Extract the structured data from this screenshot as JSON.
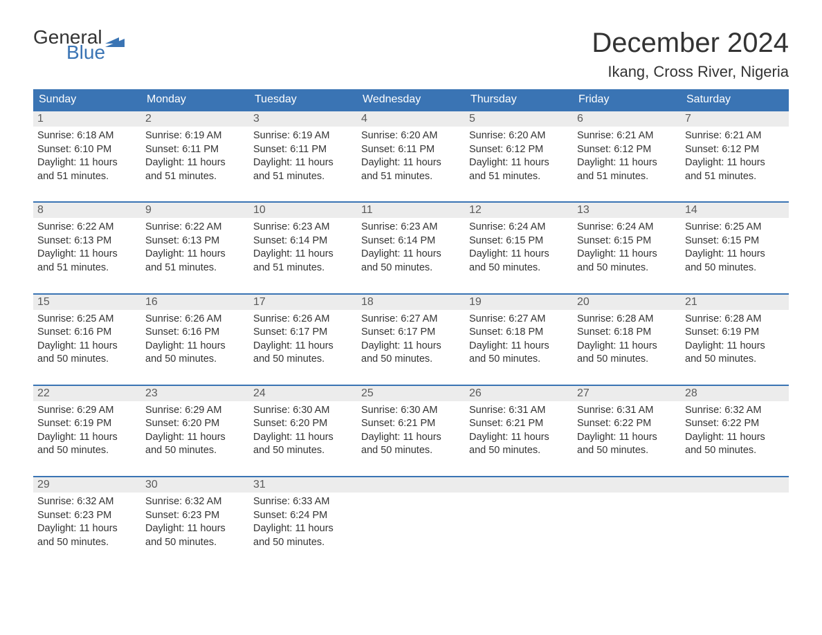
{
  "logo": {
    "word1": "General",
    "word2": "Blue",
    "text_color_word1": "#333333",
    "text_color_word2": "#3a74b4",
    "flag_color": "#3a74b4"
  },
  "title": {
    "month": "December 2024",
    "location": "Ikang, Cross River, Nigeria"
  },
  "colors": {
    "header_bg": "#3a74b4",
    "header_text": "#ffffff",
    "daynum_bg": "#ececec",
    "daynum_text": "#5a5a5a",
    "body_text": "#333333",
    "week_border": "#3a74b4",
    "page_bg": "#ffffff"
  },
  "typography": {
    "month_title_fontsize": 40,
    "location_fontsize": 22,
    "dow_fontsize": 16,
    "daynum_fontsize": 16,
    "body_fontsize": 14.5
  },
  "days_of_week": [
    "Sunday",
    "Monday",
    "Tuesday",
    "Wednesday",
    "Thursday",
    "Friday",
    "Saturday"
  ],
  "weeks": [
    [
      {
        "day": "1",
        "sunrise": "Sunrise: 6:18 AM",
        "sunset": "Sunset: 6:10 PM",
        "daylight1": "Daylight: 11 hours",
        "daylight2": "and 51 minutes."
      },
      {
        "day": "2",
        "sunrise": "Sunrise: 6:19 AM",
        "sunset": "Sunset: 6:11 PM",
        "daylight1": "Daylight: 11 hours",
        "daylight2": "and 51 minutes."
      },
      {
        "day": "3",
        "sunrise": "Sunrise: 6:19 AM",
        "sunset": "Sunset: 6:11 PM",
        "daylight1": "Daylight: 11 hours",
        "daylight2": "and 51 minutes."
      },
      {
        "day": "4",
        "sunrise": "Sunrise: 6:20 AM",
        "sunset": "Sunset: 6:11 PM",
        "daylight1": "Daylight: 11 hours",
        "daylight2": "and 51 minutes."
      },
      {
        "day": "5",
        "sunrise": "Sunrise: 6:20 AM",
        "sunset": "Sunset: 6:12 PM",
        "daylight1": "Daylight: 11 hours",
        "daylight2": "and 51 minutes."
      },
      {
        "day": "6",
        "sunrise": "Sunrise: 6:21 AM",
        "sunset": "Sunset: 6:12 PM",
        "daylight1": "Daylight: 11 hours",
        "daylight2": "and 51 minutes."
      },
      {
        "day": "7",
        "sunrise": "Sunrise: 6:21 AM",
        "sunset": "Sunset: 6:12 PM",
        "daylight1": "Daylight: 11 hours",
        "daylight2": "and 51 minutes."
      }
    ],
    [
      {
        "day": "8",
        "sunrise": "Sunrise: 6:22 AM",
        "sunset": "Sunset: 6:13 PM",
        "daylight1": "Daylight: 11 hours",
        "daylight2": "and 51 minutes."
      },
      {
        "day": "9",
        "sunrise": "Sunrise: 6:22 AM",
        "sunset": "Sunset: 6:13 PM",
        "daylight1": "Daylight: 11 hours",
        "daylight2": "and 51 minutes."
      },
      {
        "day": "10",
        "sunrise": "Sunrise: 6:23 AM",
        "sunset": "Sunset: 6:14 PM",
        "daylight1": "Daylight: 11 hours",
        "daylight2": "and 51 minutes."
      },
      {
        "day": "11",
        "sunrise": "Sunrise: 6:23 AM",
        "sunset": "Sunset: 6:14 PM",
        "daylight1": "Daylight: 11 hours",
        "daylight2": "and 50 minutes."
      },
      {
        "day": "12",
        "sunrise": "Sunrise: 6:24 AM",
        "sunset": "Sunset: 6:15 PM",
        "daylight1": "Daylight: 11 hours",
        "daylight2": "and 50 minutes."
      },
      {
        "day": "13",
        "sunrise": "Sunrise: 6:24 AM",
        "sunset": "Sunset: 6:15 PM",
        "daylight1": "Daylight: 11 hours",
        "daylight2": "and 50 minutes."
      },
      {
        "day": "14",
        "sunrise": "Sunrise: 6:25 AM",
        "sunset": "Sunset: 6:15 PM",
        "daylight1": "Daylight: 11 hours",
        "daylight2": "and 50 minutes."
      }
    ],
    [
      {
        "day": "15",
        "sunrise": "Sunrise: 6:25 AM",
        "sunset": "Sunset: 6:16 PM",
        "daylight1": "Daylight: 11 hours",
        "daylight2": "and 50 minutes."
      },
      {
        "day": "16",
        "sunrise": "Sunrise: 6:26 AM",
        "sunset": "Sunset: 6:16 PM",
        "daylight1": "Daylight: 11 hours",
        "daylight2": "and 50 minutes."
      },
      {
        "day": "17",
        "sunrise": "Sunrise: 6:26 AM",
        "sunset": "Sunset: 6:17 PM",
        "daylight1": "Daylight: 11 hours",
        "daylight2": "and 50 minutes."
      },
      {
        "day": "18",
        "sunrise": "Sunrise: 6:27 AM",
        "sunset": "Sunset: 6:17 PM",
        "daylight1": "Daylight: 11 hours",
        "daylight2": "and 50 minutes."
      },
      {
        "day": "19",
        "sunrise": "Sunrise: 6:27 AM",
        "sunset": "Sunset: 6:18 PM",
        "daylight1": "Daylight: 11 hours",
        "daylight2": "and 50 minutes."
      },
      {
        "day": "20",
        "sunrise": "Sunrise: 6:28 AM",
        "sunset": "Sunset: 6:18 PM",
        "daylight1": "Daylight: 11 hours",
        "daylight2": "and 50 minutes."
      },
      {
        "day": "21",
        "sunrise": "Sunrise: 6:28 AM",
        "sunset": "Sunset: 6:19 PM",
        "daylight1": "Daylight: 11 hours",
        "daylight2": "and 50 minutes."
      }
    ],
    [
      {
        "day": "22",
        "sunrise": "Sunrise: 6:29 AM",
        "sunset": "Sunset: 6:19 PM",
        "daylight1": "Daylight: 11 hours",
        "daylight2": "and 50 minutes."
      },
      {
        "day": "23",
        "sunrise": "Sunrise: 6:29 AM",
        "sunset": "Sunset: 6:20 PM",
        "daylight1": "Daylight: 11 hours",
        "daylight2": "and 50 minutes."
      },
      {
        "day": "24",
        "sunrise": "Sunrise: 6:30 AM",
        "sunset": "Sunset: 6:20 PM",
        "daylight1": "Daylight: 11 hours",
        "daylight2": "and 50 minutes."
      },
      {
        "day": "25",
        "sunrise": "Sunrise: 6:30 AM",
        "sunset": "Sunset: 6:21 PM",
        "daylight1": "Daylight: 11 hours",
        "daylight2": "and 50 minutes."
      },
      {
        "day": "26",
        "sunrise": "Sunrise: 6:31 AM",
        "sunset": "Sunset: 6:21 PM",
        "daylight1": "Daylight: 11 hours",
        "daylight2": "and 50 minutes."
      },
      {
        "day": "27",
        "sunrise": "Sunrise: 6:31 AM",
        "sunset": "Sunset: 6:22 PM",
        "daylight1": "Daylight: 11 hours",
        "daylight2": "and 50 minutes."
      },
      {
        "day": "28",
        "sunrise": "Sunrise: 6:32 AM",
        "sunset": "Sunset: 6:22 PM",
        "daylight1": "Daylight: 11 hours",
        "daylight2": "and 50 minutes."
      }
    ],
    [
      {
        "day": "29",
        "sunrise": "Sunrise: 6:32 AM",
        "sunset": "Sunset: 6:23 PM",
        "daylight1": "Daylight: 11 hours",
        "daylight2": "and 50 minutes."
      },
      {
        "day": "30",
        "sunrise": "Sunrise: 6:32 AM",
        "sunset": "Sunset: 6:23 PM",
        "daylight1": "Daylight: 11 hours",
        "daylight2": "and 50 minutes."
      },
      {
        "day": "31",
        "sunrise": "Sunrise: 6:33 AM",
        "sunset": "Sunset: 6:24 PM",
        "daylight1": "Daylight: 11 hours",
        "daylight2": "and 50 minutes."
      },
      {
        "empty": true
      },
      {
        "empty": true
      },
      {
        "empty": true
      },
      {
        "empty": true
      }
    ]
  ]
}
